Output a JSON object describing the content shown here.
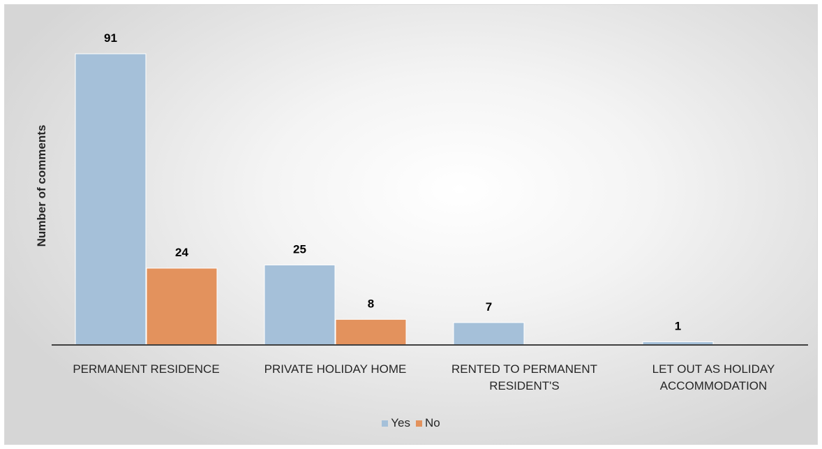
{
  "chart_data": {
    "type": "bar",
    "ylabel": "Number of comments",
    "categories": [
      [
        "PERMANENT RESIDENCE"
      ],
      [
        "PRIVATE HOLIDAY HOME"
      ],
      [
        "RENTED TO PERMANENT",
        "RESIDENT'S"
      ],
      [
        "LET OUT AS HOLIDAY",
        "ACCOMMODATION"
      ]
    ],
    "series": [
      {
        "name": "Yes",
        "color": "#a5c0d9",
        "values": [
          91,
          25,
          7,
          1
        ]
      },
      {
        "name": "No",
        "color": "#e3925d",
        "values": [
          24,
          8,
          null,
          null
        ]
      }
    ],
    "ylim": [
      0,
      91
    ],
    "grid": false,
    "legend_position": "bottom"
  }
}
